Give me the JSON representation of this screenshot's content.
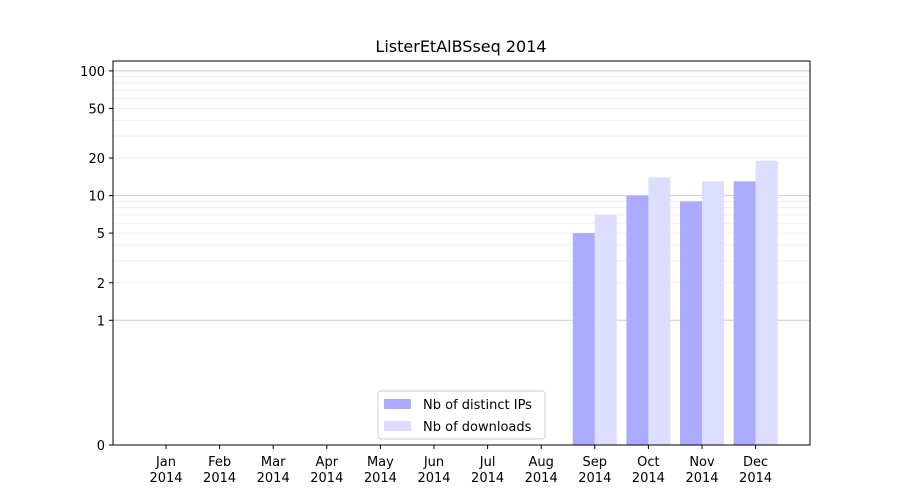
{
  "chart_data": {
    "type": "bar",
    "title": "ListerEtAlBSseq 2014",
    "xlabel": "",
    "ylabel": "",
    "yscale": "symlog",
    "yticks": [
      0,
      1,
      2,
      5,
      10,
      20,
      50,
      100
    ],
    "ylim": [
      0,
      120
    ],
    "categories": [
      "Jan\n2014",
      "Feb\n2014",
      "Mar\n2014",
      "Apr\n2014",
      "May\n2014",
      "Jun\n2014",
      "Jul\n2014",
      "Aug\n2014",
      "Sep\n2014",
      "Oct\n2014",
      "Nov\n2014",
      "Dec\n2014"
    ],
    "series": [
      {
        "name": "Nb of distinct IPs",
        "color": "#aaaaff",
        "values": [
          0,
          0,
          0,
          0,
          0,
          0,
          0,
          0,
          5,
          10,
          9,
          13
        ]
      },
      {
        "name": "Nb of downloads",
        "color": "#ddddff",
        "values": [
          0,
          0,
          0,
          0,
          0,
          0,
          0,
          0,
          7,
          14,
          13,
          19
        ]
      }
    ],
    "grid": true,
    "legend_position": "lower-center"
  }
}
